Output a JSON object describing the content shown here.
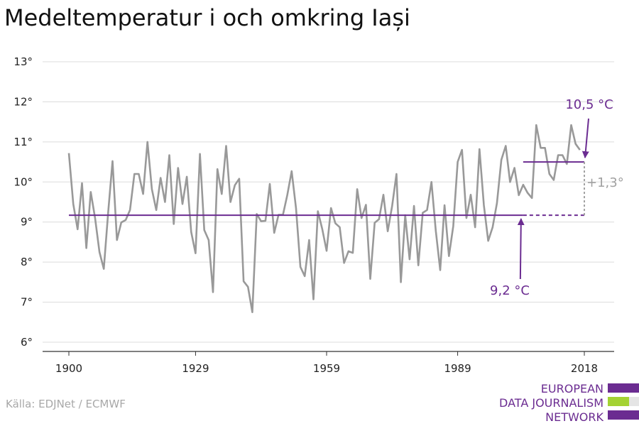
{
  "title": "Medeltemperatur i och omkring Iași",
  "source": "Källa: EDJNet / ECMWF",
  "logo": {
    "lines": [
      "EUROPEAN",
      "DATA JOURNALISM",
      "NETWORK"
    ]
  },
  "colors": {
    "series": "#999999",
    "purple": "#6b2c91",
    "green": "#a4d233",
    "grid": "#dcdcdc",
    "gray_anno": "#a0a0a0"
  },
  "annotations": {
    "start_avg": "9,2 °C",
    "end_avg": "10,5 °C",
    "diff": "+1,3°"
  },
  "chart_data": {
    "type": "line",
    "title": "Medeltemperatur i och omkring Iași",
    "xlabel": "",
    "ylabel": "",
    "ylim": [
      6,
      13
    ],
    "xlim": [
      1900,
      2018
    ],
    "yticks": [
      6,
      7,
      8,
      9,
      10,
      11,
      12,
      13
    ],
    "ytick_labels": [
      "6°",
      "7°",
      "8°",
      "9°",
      "10°",
      "11°",
      "12°",
      "13°"
    ],
    "xticks": [
      1900,
      1929,
      1959,
      1989,
      2018
    ],
    "xtick_labels": [
      "1900",
      "1929",
      "1959",
      "1989",
      "2018"
    ],
    "grid": true,
    "series": [
      {
        "values": [
          10.72,
          9.45,
          8.82,
          9.97,
          8.35,
          9.75,
          9.1,
          8.25,
          7.83,
          9.25,
          10.52,
          8.55,
          8.99,
          9.05,
          9.3,
          10.2,
          10.2,
          9.7,
          11.0,
          9.82,
          9.3,
          10.1,
          9.5,
          10.67,
          8.95,
          10.35,
          9.45,
          10.13,
          8.75,
          8.22,
          10.7,
          8.8,
          8.55,
          7.25,
          10.32,
          9.7,
          10.9,
          9.5,
          9.92,
          10.08,
          7.52,
          7.38,
          6.75,
          9.2,
          9.02,
          9.03,
          9.95,
          8.73,
          9.18,
          9.18,
          9.67,
          10.27,
          9.35,
          7.88,
          7.65,
          8.55,
          7.07,
          9.27,
          8.83,
          8.28,
          9.35,
          8.97,
          8.87,
          7.98,
          8.27,
          8.23,
          9.82,
          9.1,
          9.43,
          7.58,
          8.98,
          9.07,
          9.68,
          8.77,
          9.4,
          10.2,
          7.5,
          9.17,
          8.07,
          9.4,
          7.92,
          9.23,
          9.3,
          10.0,
          8.78,
          7.8,
          9.42,
          8.15,
          8.9,
          10.5,
          10.8,
          9.1,
          9.68,
          8.87,
          10.82,
          9.42,
          8.53,
          8.87,
          9.47,
          10.55,
          10.9,
          10.0,
          10.35,
          9.67,
          9.93,
          9.73,
          9.6,
          11.42,
          10.85,
          10.85,
          10.2,
          10.05,
          10.67,
          10.67,
          10.45,
          11.42,
          10.95,
          10.8
        ]
      }
    ],
    "reference_lines": [
      {
        "label": "9,2 °C",
        "value": 9.17,
        "x_start": 1900,
        "x_end": 2004
      },
      {
        "label": "10,5 °C",
        "value": 10.5,
        "x_start": 2004,
        "x_end": 2018
      }
    ],
    "difference_label": "+1,3°"
  }
}
